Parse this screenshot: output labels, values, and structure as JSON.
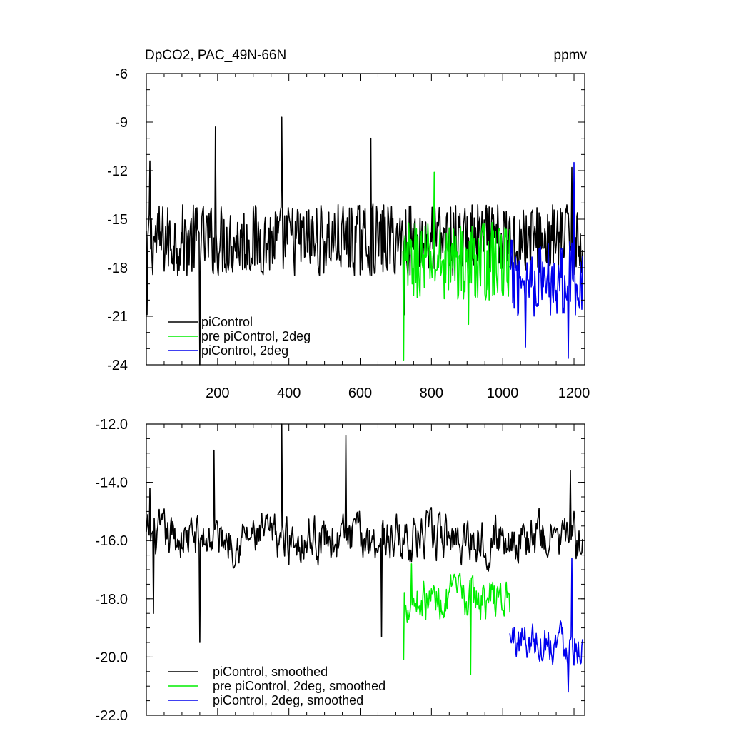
{
  "chart_data": [
    {
      "type": "line",
      "title": "DpCO2, PAC_49N-66N",
      "units": "ppmv",
      "xlim": [
        0,
        1230
      ],
      "ylim": [
        -24,
        -6
      ],
      "xticks": [
        200,
        400,
        600,
        800,
        1000,
        1200
      ],
      "xtick_labels": [
        "200",
        "400",
        "600",
        "800",
        "1000",
        "1200"
      ],
      "yticks": [
        -6,
        -9,
        -12,
        -15,
        -18,
        -21,
        -24
      ],
      "ytick_labels": [
        "-6",
        "-9",
        "-12",
        "-15",
        "-18",
        "-21",
        "-24"
      ],
      "grid": false,
      "legend_position": "bottom-left",
      "series": [
        {
          "name": "piControl",
          "color": "#000000",
          "x_start": 0,
          "x_end": 1225,
          "mean": -16.3,
          "amplitude": 1.5,
          "min": -24,
          "max": -8.7,
          "peaks": [
            [
              2,
              -20.9
            ],
            [
              10,
              -11.4
            ],
            [
              150,
              -24
            ],
            [
              195,
              -9.3
            ],
            [
              380,
              -8.7
            ],
            [
              630,
              -10
            ],
            [
              725,
              -20.9
            ],
            [
              1195,
              -11.8
            ]
          ]
        },
        {
          "name": "pre piControl, 2deg",
          "color": "#00ee00",
          "x_start": 720,
          "x_end": 1020,
          "mean": -17.6,
          "amplitude": 1.6,
          "min": -23.7,
          "max": -12.1,
          "peaks": [
            [
              722,
              -23.7
            ],
            [
              808,
              -12.1
            ],
            [
              905,
              -21.5
            ]
          ]
        },
        {
          "name": "piControl, 2deg",
          "color": "#0000ee",
          "x_start": 1020,
          "x_end": 1225,
          "mean": -18.6,
          "amplitude": 1.6,
          "min": -23.6,
          "max": -11.5,
          "peaks": [
            [
              1200,
              -11.5
            ],
            [
              1185,
              -23.6
            ],
            [
              1065,
              -22.9
            ]
          ]
        }
      ]
    },
    {
      "type": "line",
      "title": "",
      "xlim": [
        0,
        1230
      ],
      "ylim": [
        -22,
        -12
      ],
      "xticks": [
        200,
        400,
        600,
        800,
        1000,
        1200
      ],
      "yticks": [
        -12,
        -14,
        -16,
        -18,
        -20,
        -22
      ],
      "ytick_labels": [
        "-12.0",
        "-14.0",
        "-16.0",
        "-18.0",
        "-20.0",
        "-22.0"
      ],
      "grid": false,
      "legend_position": "bottom-left",
      "series": [
        {
          "name": "piControl, smoothed",
          "color": "#000000",
          "x_start": 0,
          "x_end": 1225,
          "mean": -15.9,
          "amplitude": 0.85,
          "min": -19.5,
          "max": -12.0,
          "peaks": [
            [
              10,
              -14.2
            ],
            [
              20,
              -18.5
            ],
            [
              150,
              -19.5
            ],
            [
              190,
              -12.9
            ],
            [
              380,
              -12.0
            ],
            [
              560,
              -12.4
            ],
            [
              660,
              -19.3
            ],
            [
              1190,
              -13.6
            ]
          ]
        },
        {
          "name": "pre piControl, 2deg, smoothed",
          "color": "#00ee00",
          "x_start": 722,
          "x_end": 1020,
          "mean": -18.0,
          "amplitude": 0.8,
          "min": -20.6,
          "max": -16.8,
          "peaks": [
            [
              722,
              -20.1
            ],
            [
              745,
              -16.8
            ],
            [
              910,
              -20.6
            ]
          ]
        },
        {
          "name": "piControl, 2deg, smoothed",
          "color": "#0000ee",
          "x_start": 1020,
          "x_end": 1225,
          "mean": -19.4,
          "amplitude": 0.8,
          "min": -21.2,
          "max": -16.6,
          "peaks": [
            [
              1195,
              -16.6
            ],
            [
              1185,
              -21.2
            ],
            [
              1220,
              -20.2
            ]
          ]
        }
      ]
    }
  ]
}
